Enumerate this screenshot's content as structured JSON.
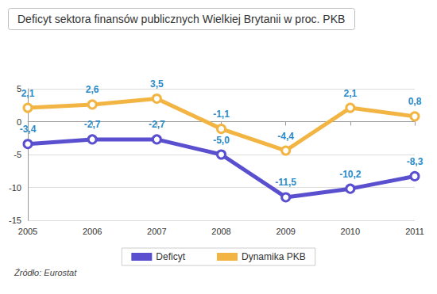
{
  "chart_data": {
    "type": "line",
    "title": "Deficyt sektora finansów publicznych Wielkiej Brytanii w proc. PKB",
    "annotations": [
      "Źródło: Eurostat"
    ],
    "categories": [
      "2005",
      "2006",
      "2007",
      "2008",
      "2009",
      "2010",
      "2011"
    ],
    "series": [
      {
        "name": "Deficyt",
        "color": "#5a4fcf",
        "marker": "circle",
        "values": [
          -3.4,
          -2.7,
          -2.7,
          -5.0,
          -11.5,
          -10.2,
          -8.3
        ],
        "value_labels": [
          "-3,4",
          "-2,7",
          "-2,7",
          "-5,0",
          "-11,5",
          "-10,2",
          "-8,3"
        ]
      },
      {
        "name": "Dynamika PKB",
        "color": "#f2b544",
        "marker": "circle",
        "values": [
          2.1,
          2.6,
          3.5,
          -1.1,
          -4.4,
          2.1,
          0.8
        ],
        "value_labels": [
          "2,1",
          "2,6",
          "3,5",
          "-1,1",
          "-4,4",
          "2,1",
          "0,8"
        ]
      }
    ],
    "ylim": [
      -15,
      5
    ],
    "yticks": [
      -15,
      -10,
      -5,
      0,
      5
    ],
    "grid": true,
    "legend": "bottom",
    "data_labels": true
  }
}
